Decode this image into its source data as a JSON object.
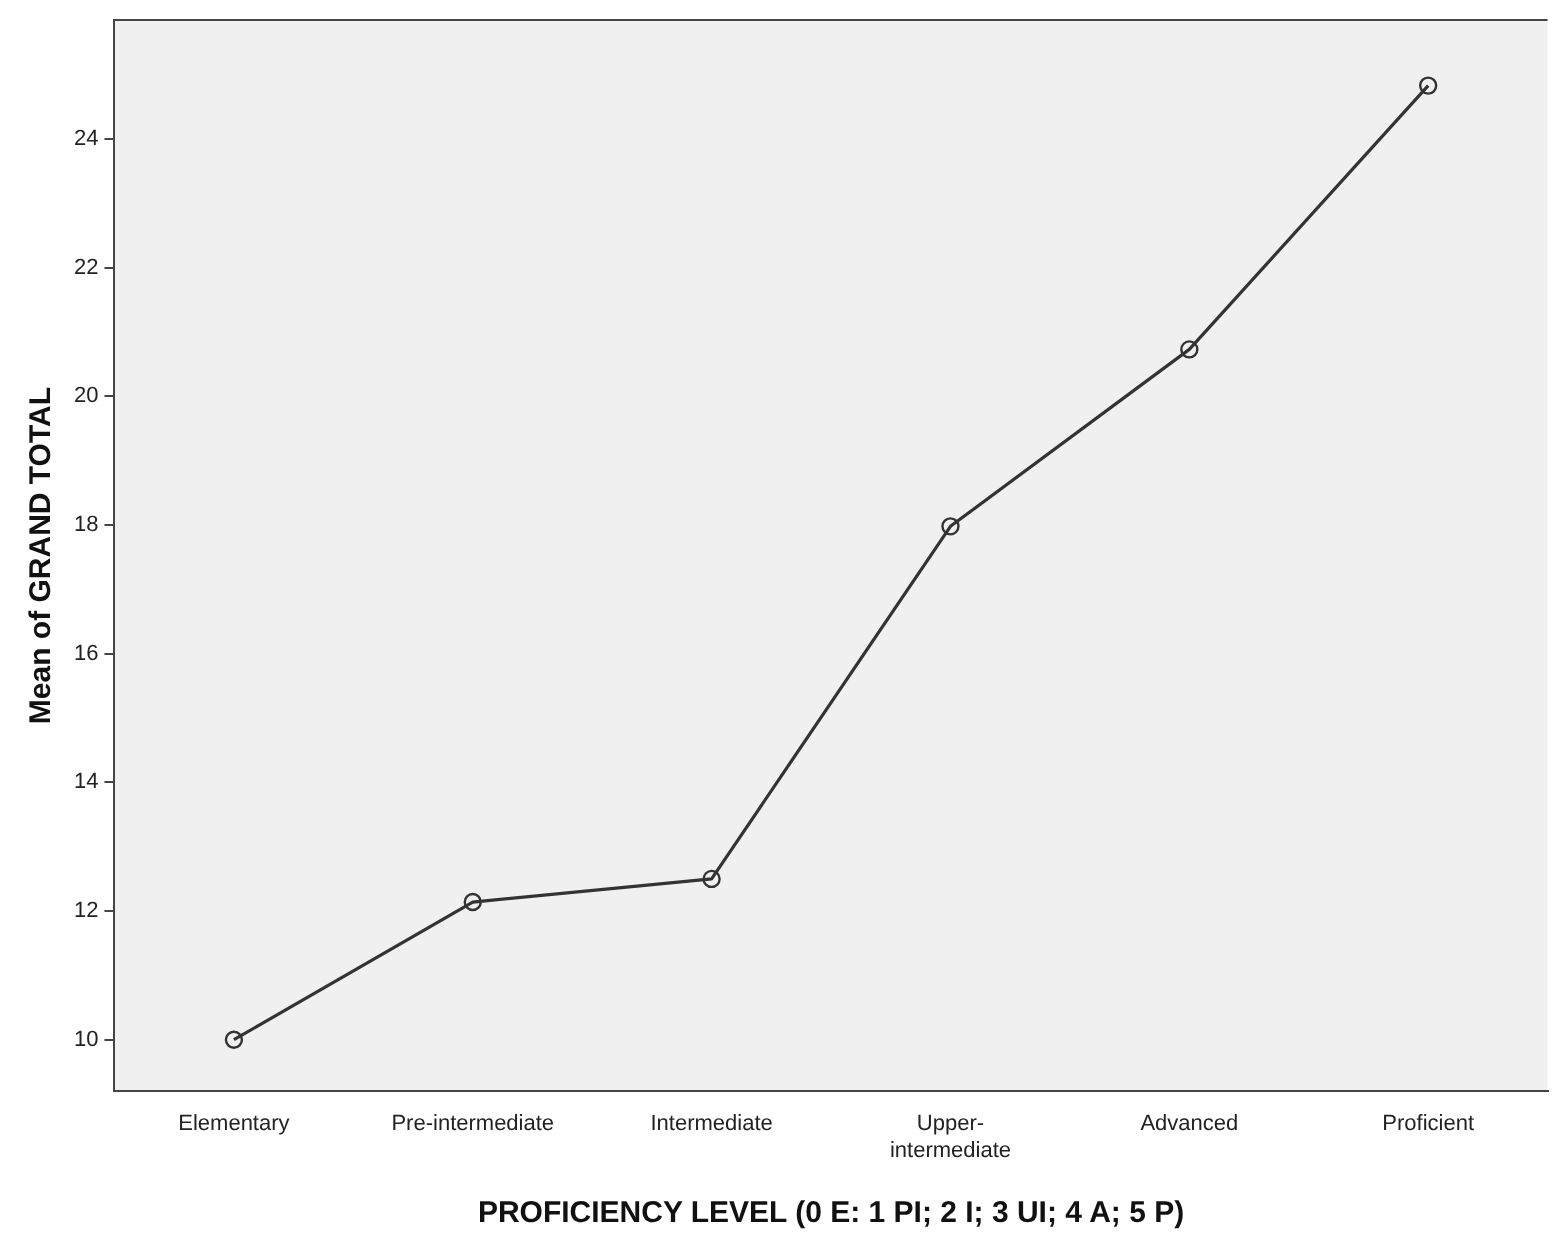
{
  "chart_data": {
    "type": "line",
    "xlabel": "PROFICIENCY LEVEL (0 E: 1 PI; 2 I; 3 UI; 4 A; 5 P)",
    "ylabel": "Mean of GRAND TOTAL",
    "categories": [
      "Elementary",
      "Pre-intermediate",
      "Intermediate",
      "Upper-\nintermediate",
      "Advanced",
      "Proficient"
    ],
    "series": [
      {
        "color": "#333333",
        "values": [
          10.0,
          12.14,
          12.5,
          17.98,
          20.73,
          24.83
        ]
      }
    ],
    "ylim": [
      9.2,
      25.85
    ],
    "yticks": [
      10,
      12,
      14,
      16,
      18,
      20,
      22,
      24
    ],
    "grid": false,
    "legend": false,
    "marker": "circle",
    "line_style": "solid"
  }
}
